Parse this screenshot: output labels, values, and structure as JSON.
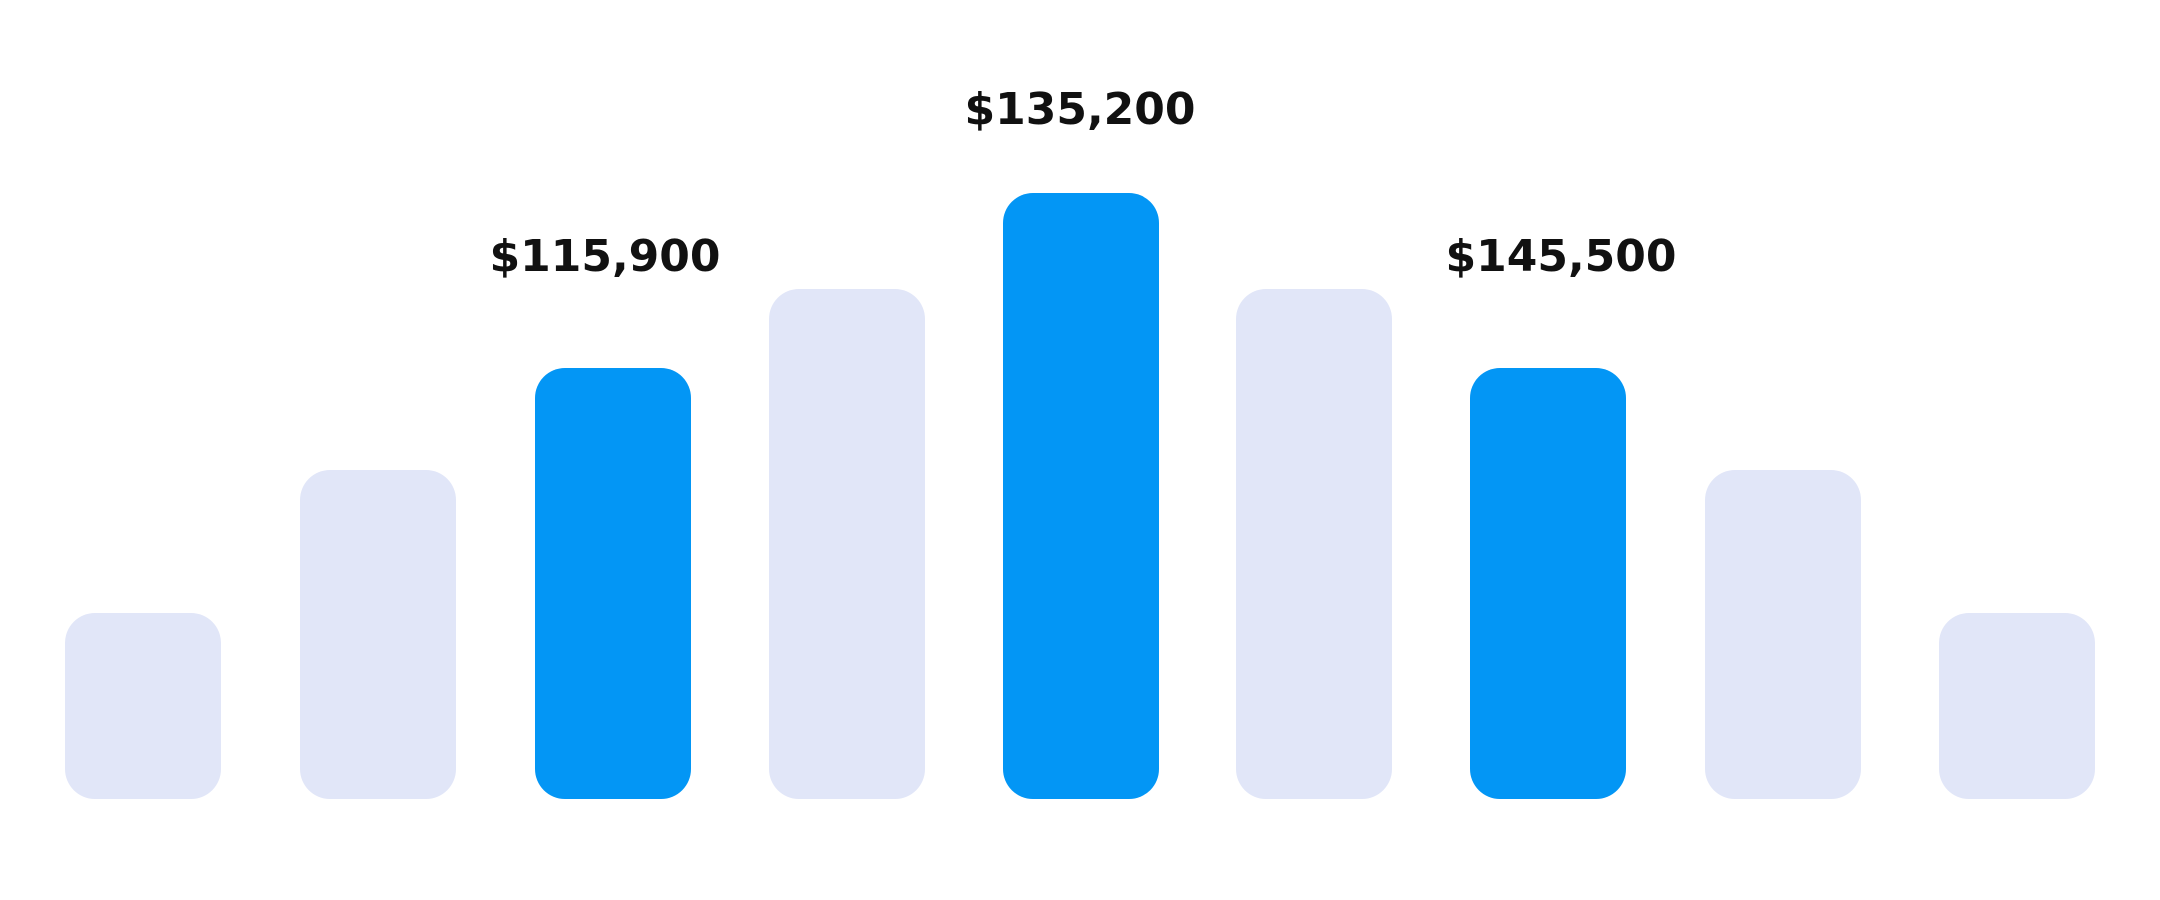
{
  "labels": [
    "$115,900",
    "$135,200",
    "$145,500"
  ]
}
